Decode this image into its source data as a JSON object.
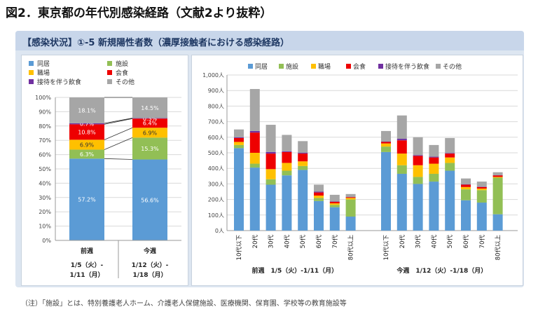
{
  "figure_title": "図2．東京都の年代別感染経路（文献2より抜粋）",
  "banner_title": "【感染状況】①-5 新規陽性者数（濃厚接触者における感染経路）",
  "note": "（注）「施設」とは、特別養護老人ホーム、介護老人保健施設、医療機関、保育園、学校等の教育施設等",
  "colors": {
    "同居": "#5b9bd5",
    "施設": "#92bf55",
    "職場": "#ffc000",
    "会食": "#ee0000",
    "接待を伴う飲食": "#7030a0",
    "その他": "#a6a6a6"
  },
  "chart_data": [
    {
      "type": "bar",
      "stacked": true,
      "percent": true,
      "legend": [
        "同居",
        "施設",
        "職場",
        "会食",
        "接待を伴う飲食",
        "その他"
      ],
      "legend_position": "top",
      "y_ticks": [
        "0%",
        "10%",
        "20%",
        "30%",
        "40%",
        "50%",
        "60%",
        "70%",
        "80%",
        "90%",
        "100%"
      ],
      "ylim": [
        0,
        100
      ],
      "categories": [
        {
          "label": "前週",
          "sub1": "1/5（火）-",
          "sub2": "1/11（月）"
        },
        {
          "label": "今週",
          "sub1": "1/12（火）-",
          "sub2": "1/18（月）"
        }
      ],
      "series": [
        {
          "name": "同居",
          "values": [
            57.2,
            56.6
          ],
          "labels": [
            "57.2%",
            "56.6%"
          ]
        },
        {
          "name": "施設",
          "values": [
            6.3,
            15.3
          ],
          "labels": [
            "6.3%",
            "15.3%"
          ]
        },
        {
          "name": "職場",
          "values": [
            6.9,
            6.9
          ],
          "labels": [
            "6.9%",
            "6.9%"
          ]
        },
        {
          "name": "会食",
          "values": [
            10.8,
            6.4
          ],
          "labels": [
            "10.8%",
            "6.4%"
          ]
        },
        {
          "name": "接待を伴う飲食",
          "values": [
            0.7,
            0.3
          ],
          "labels": [
            "0.7%",
            "0.3%"
          ]
        },
        {
          "name": "その他",
          "values": [
            18.1,
            14.5
          ],
          "labels": [
            "18.1%",
            "14.5%"
          ]
        }
      ]
    },
    {
      "type": "bar",
      "stacked": true,
      "legend": [
        "同居",
        "施設",
        "職場",
        "会食",
        "接待を伴う飲食",
        "その他"
      ],
      "legend_position": "top",
      "ylim": [
        0,
        1000
      ],
      "y_ticks": [
        "0人",
        "100人",
        "200人",
        "300人",
        "400人",
        "500人",
        "600人",
        "700人",
        "800人",
        "900人",
        "1,000人"
      ],
      "categories": [
        "10代以下",
        "20代",
        "30代",
        "40代",
        "50代",
        "60代",
        "70代",
        "80代以上"
      ],
      "groups": [
        {
          "label": "前週　1/5（火）-1/11（月）",
          "series": [
            {
              "name": "同居",
              "values": [
                530,
                405,
                295,
                355,
                390,
                190,
                150,
                90
              ]
            },
            {
              "name": "施設",
              "values": [
                20,
                25,
                35,
                30,
                25,
                20,
                15,
                110
              ]
            },
            {
              "name": "職場",
              "values": [
                20,
                70,
                65,
                50,
                30,
                15,
                10,
                10
              ]
            },
            {
              "name": "会食",
              "values": [
                25,
                130,
                100,
                70,
                50,
                20,
                10,
                5
              ]
            },
            {
              "name": "接待を伴う飲食",
              "values": [
                5,
                10,
                10,
                5,
                5,
                5,
                2,
                1
              ]
            },
            {
              "name": "その他",
              "values": [
                50,
                270,
                175,
                105,
                75,
                45,
                43,
                19
              ]
            }
          ]
        },
        {
          "label": "今週　1/12（火）-1/18（月）",
          "series": [
            {
              "name": "同居",
              "values": [
                505,
                365,
                300,
                315,
                385,
                195,
                180,
                105
              ]
            },
            {
              "name": "施設",
              "values": [
                35,
                55,
                45,
                50,
                50,
                70,
                80,
                235
              ]
            },
            {
              "name": "職場",
              "values": [
                20,
                75,
                75,
                65,
                35,
                15,
                10,
                5
              ]
            },
            {
              "name": "会食",
              "values": [
                10,
                85,
                60,
                40,
                25,
                15,
                10,
                10
              ]
            },
            {
              "name": "接待を伴う飲食",
              "values": [
                2,
                10,
                5,
                5,
                3,
                2,
                2,
                1
              ]
            },
            {
              "name": "その他",
              "values": [
                68,
                150,
                115,
                75,
                97,
                38,
                33,
                19
              ]
            }
          ]
        }
      ]
    }
  ]
}
